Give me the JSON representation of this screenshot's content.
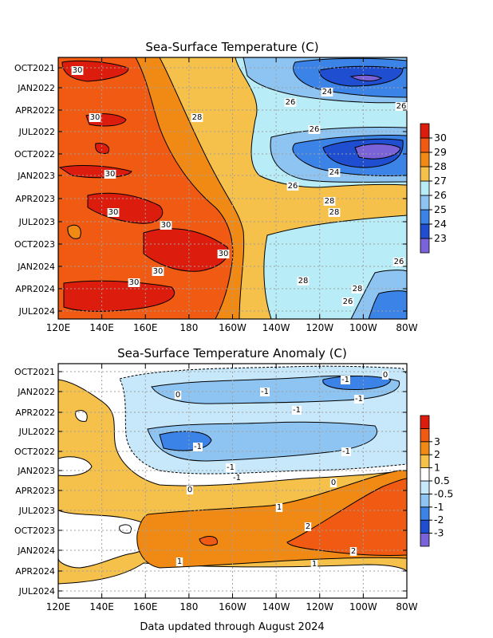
{
  "footer": "Data updated through August 2024",
  "chart_data": [
    {
      "type": "heatmap",
      "title": "Sea-Surface Temperature (C)",
      "xlabel": "",
      "ylabel": "",
      "x_ticks": [
        "120E",
        "140E",
        "160E",
        "180",
        "160W",
        "140W",
        "120W",
        "100W",
        "80W"
      ],
      "y_ticks": [
        "OCT2021",
        "JAN2022",
        "APR2022",
        "JUL2022",
        "OCT2022",
        "JAN2023",
        "APR2023",
        "JUL2023",
        "OCT2023",
        "JAN2024",
        "APR2024",
        "JUL2024"
      ],
      "x_range": [
        "120E",
        "80W"
      ],
      "y_range": [
        "OCT2021",
        "AUG2024"
      ],
      "grid": true,
      "colorbar": {
        "levels": [
          "23",
          "24",
          "25",
          "26",
          "27",
          "28",
          "29",
          "30"
        ],
        "colors": [
          "#7a62d8",
          "#1f4fd0",
          "#3b83e6",
          "#8ec4f2",
          "#b8ecf6",
          "#f5c14a",
          "#f08a15",
          "#f05a12",
          "#dc1d0d"
        ]
      },
      "contour_labels": [
        "30",
        "30",
        "30",
        "30",
        "30",
        "30",
        "30",
        "30",
        "28",
        "28",
        "28",
        "28",
        "28",
        "26",
        "26",
        "26",
        "26",
        "26",
        "26",
        "24",
        "24"
      ]
    },
    {
      "type": "heatmap",
      "title": "Sea-Surface Temperature Anomaly (C)",
      "xlabel": "",
      "ylabel": "",
      "x_ticks": [
        "120E",
        "140E",
        "160E",
        "180",
        "160W",
        "140W",
        "120W",
        "100W",
        "80W"
      ],
      "y_ticks": [
        "OCT2021",
        "JAN2022",
        "APR2022",
        "JUL2022",
        "OCT2022",
        "JAN2023",
        "APR2023",
        "JUL2023",
        "OCT2023",
        "JAN2024",
        "APR2024",
        "JUL2024"
      ],
      "x_range": [
        "120E",
        "80W"
      ],
      "y_range": [
        "OCT2021",
        "AUG2024"
      ],
      "grid": true,
      "colorbar": {
        "levels": [
          "-3",
          "-2",
          "-1",
          "-0.5",
          "0.5",
          "1",
          "2",
          "3"
        ],
        "colors": [
          "#7a62d8",
          "#1f4fd0",
          "#3b83e6",
          "#8ec4f2",
          "#c6e8fa",
          "#ffffff",
          "#f5c14a",
          "#f08a15",
          "#f05a12",
          "#dc1d0d"
        ]
      },
      "contour_labels": [
        "0",
        "0",
        "0",
        "0",
        "-1",
        "-1",
        "-1",
        "-1",
        "-1",
        "-1",
        "-1",
        "-1",
        "1",
        "1",
        "1",
        "2",
        "2"
      ]
    }
  ]
}
